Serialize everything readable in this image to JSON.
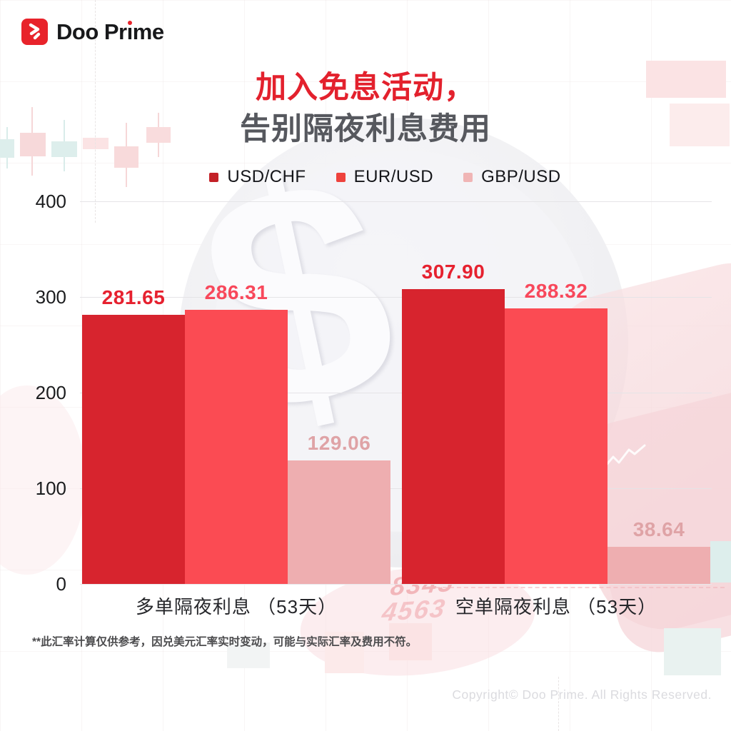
{
  "brand": {
    "name": "Doo Prime",
    "logo_part1": "Doo Pr",
    "logo_part2": "ı",
    "logo_part3": "me"
  },
  "title": {
    "line1": "加入免息活动，",
    "line2": "告别隔夜利息费用"
  },
  "chart_data": {
    "type": "bar",
    "title": "加入免息活动，告别隔夜利息费用",
    "categories": [
      "多单隔夜利息 （53天）",
      "空单隔夜利息 （53天）"
    ],
    "series": [
      {
        "name": "USD/CHF",
        "values": [
          281.65,
          307.9
        ],
        "display": [
          "281.65",
          "307.90"
        ],
        "bar_color": "#d7242e",
        "label_color": "#e6212f",
        "legend_color": "#c32127"
      },
      {
        "name": "EUR/USD",
        "values": [
          286.31,
          288.32
        ],
        "display": [
          "286.31",
          "288.32"
        ],
        "bar_color": "#fb4b53",
        "label_color": "#f8485b",
        "legend_color": "#ee423d"
      },
      {
        "name": "GBP/USD",
        "values": [
          129.06,
          38.64
        ],
        "display": [
          "129.06",
          "38.64"
        ],
        "bar_color": "#eeaeb0",
        "label_color": "#dfa3a6",
        "legend_color": "#f0b5b5"
      }
    ],
    "y_ticks": [
      "400",
      "300",
      "200",
      "100",
      "0"
    ],
    "ylim": [
      0,
      400
    ],
    "grid": true,
    "legend_position": "top-center"
  },
  "footnote": "**此汇率计算仅供参考，因兑美元汇率实时变动，可能与实际汇率及费用不符。",
  "copyright": "Copyright© Doo Prime. All Rights Reserved.",
  "background": {
    "dollar_glyph": "$",
    "numbers": [
      "8345",
      "4563"
    ]
  },
  "colors": {
    "accent_red": "#e3212d",
    "subtitle_gray": "#56585e"
  }
}
